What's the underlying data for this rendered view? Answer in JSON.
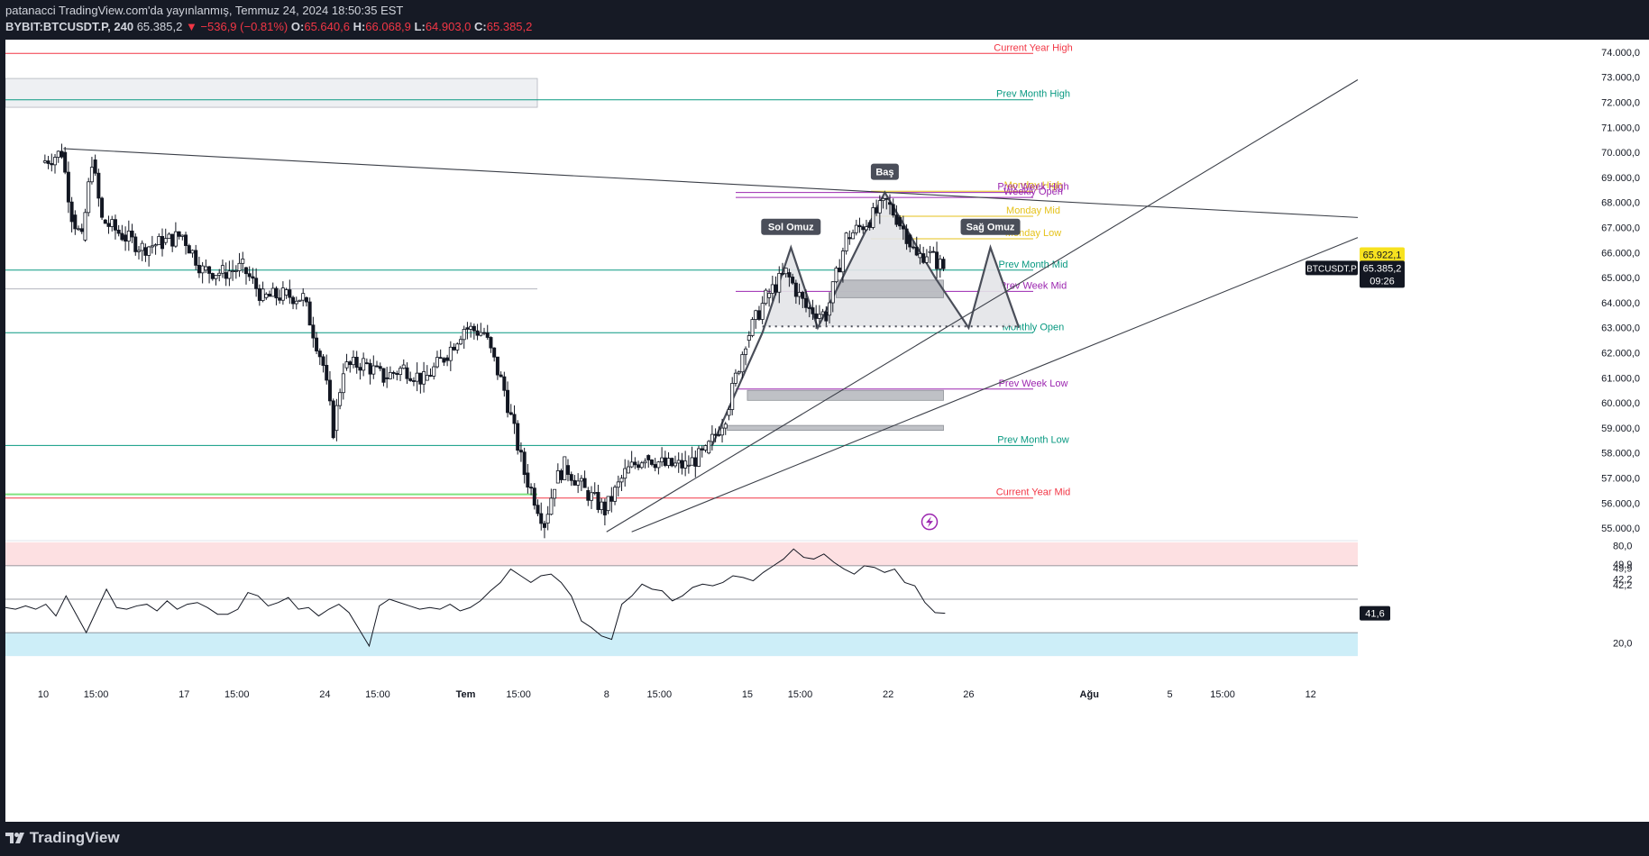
{
  "header": {
    "publisher_line": "patanacci TradingView.com'da yayınlanmış, Temmuz 24, 2024 18:50:35 EST",
    "symbol_interval": "BYBIT:BTCUSDT.P, 240",
    "last": "65.385,2",
    "change": "▼ −536,9 (−0.81%)",
    "o_label": "O:",
    "o_value": "65.640,6",
    "h_label": "H:",
    "h_value": "66.068,9",
    "l_label": "L:",
    "l_value": "64.903,0",
    "c_label": "C:",
    "c_value": "65.385,2"
  },
  "footer": {
    "logo_text": "TradingView"
  },
  "colors": {
    "background": "#ffffff",
    "frame": "#161a25",
    "candle": "#131722",
    "drawing": "#4a4e59",
    "green_level": "#089981",
    "red_level": "#f23645",
    "purple_level": "#9c27b0",
    "yellow_level": "#e5c21a",
    "rsi_line": "#131722",
    "rsi_overbought_zone": "#fde0e2",
    "rsi_oversold_zone": "#cdeef8"
  },
  "chart_data": {
    "type": "candlestick",
    "symbol": "BTCUSDT.P",
    "interval": "240",
    "y_axis": {
      "range": [
        54500,
        74500
      ],
      "ticks": [
        "74.000,0",
        "73.000,0",
        "72.000,0",
        "71.000,0",
        "70.000,0",
        "69.000,0",
        "68.000,0",
        "67.000,0",
        "66.000,0",
        "65.000,0",
        "64.000,0",
        "63.000,0",
        "62.000,0",
        "61.000,0",
        "60.000,0",
        "59.000,0",
        "58.000,0",
        "57.000,0",
        "56.000,0",
        "55.000,0"
      ],
      "tick_values": [
        74000,
        73000,
        72000,
        71000,
        70000,
        69000,
        68000,
        67000,
        66000,
        65000,
        64000,
        63000,
        62000,
        61000,
        60000,
        59000,
        58000,
        57000,
        56000,
        55000
      ]
    },
    "x_axis": {
      "range": [
        "2024-06-10",
        "2024-08-13"
      ],
      "ticks": [
        {
          "label": "10",
          "date": "2024-06-10"
        },
        {
          "label": "15:00",
          "date": "2024-06-12 15:00"
        },
        {
          "label": "17",
          "date": "2024-06-17"
        },
        {
          "label": "15:00",
          "date": "2024-06-19 15:00"
        },
        {
          "label": "24",
          "date": "2024-06-24"
        },
        {
          "label": "15:00",
          "date": "2024-06-26 15:00"
        },
        {
          "label": "Tem",
          "date": "2024-07-01"
        },
        {
          "label": "15:00",
          "date": "2024-07-03 15:00"
        },
        {
          "label": "8",
          "date": "2024-07-08"
        },
        {
          "label": "15:00",
          "date": "2024-07-10 15:00"
        },
        {
          "label": "15",
          "date": "2024-07-15"
        },
        {
          "label": "15:00",
          "date": "2024-07-17 15:00"
        },
        {
          "label": "22",
          "date": "2024-07-22"
        },
        {
          "label": "26",
          "date": "2024-07-26"
        },
        {
          "label": "Ağu",
          "date": "2024-08-01"
        },
        {
          "label": "5",
          "date": "2024-08-05"
        },
        {
          "label": "15:00",
          "date": "2024-08-07 15:00"
        },
        {
          "label": "12",
          "date": "2024-08-12"
        }
      ]
    },
    "price_path": [
      [
        "2024-06-10",
        69600
      ],
      [
        "2024-06-11",
        70000
      ],
      [
        "2024-06-11 12:00",
        67500
      ],
      [
        "2024-06-12",
        66500
      ],
      [
        "2024-06-12 12:00",
        69700
      ],
      [
        "2024-06-13",
        67300
      ],
      [
        "2024-06-14",
        66700
      ],
      [
        "2024-06-15",
        66200
      ],
      [
        "2024-06-16",
        66400
      ],
      [
        "2024-06-17",
        66700
      ],
      [
        "2024-06-18",
        65300
      ],
      [
        "2024-06-19",
        65200
      ],
      [
        "2024-06-20",
        65400
      ],
      [
        "2024-06-21",
        64200
      ],
      [
        "2024-06-22",
        64300
      ],
      [
        "2024-06-23",
        64200
      ],
      [
        "2024-06-24",
        61500
      ],
      [
        "2024-06-24 12:00",
        58900
      ],
      [
        "2024-06-25",
        61400
      ],
      [
        "2024-06-26",
        61600
      ],
      [
        "2024-06-27",
        61000
      ],
      [
        "2024-06-28",
        61400
      ],
      [
        "2024-06-29",
        60900
      ],
      [
        "2024-06-30",
        61800
      ],
      [
        "2024-07-01",
        63000
      ],
      [
        "2024-07-02",
        62800
      ],
      [
        "2024-07-03",
        60500
      ],
      [
        "2024-07-04",
        57200
      ],
      [
        "2024-07-05",
        55200
      ],
      [
        "2024-07-05 12:00",
        56800
      ],
      [
        "2024-07-06",
        57500
      ],
      [
        "2024-07-07",
        56500
      ],
      [
        "2024-07-08",
        55700
      ],
      [
        "2024-07-09",
        57200
      ],
      [
        "2024-07-10",
        57900
      ],
      [
        "2024-07-11",
        57500
      ],
      [
        "2024-07-12",
        57500
      ],
      [
        "2024-07-13",
        58000
      ],
      [
        "2024-07-14",
        59500
      ],
      [
        "2024-07-15",
        62500
      ],
      [
        "2024-07-16",
        64200
      ],
      [
        "2024-07-17",
        65200
      ],
      [
        "2024-07-18",
        63800
      ],
      [
        "2024-07-19",
        63500
      ],
      [
        "2024-07-20",
        66600
      ],
      [
        "2024-07-21",
        67200
      ],
      [
        "2024-07-22",
        68000
      ],
      [
        "2024-07-22 12:00",
        67400
      ],
      [
        "2024-07-23",
        66700
      ],
      [
        "2024-07-23 12:00",
        65800
      ],
      [
        "2024-07-24",
        66000
      ],
      [
        "2024-07-24 20:00",
        65385.2
      ]
    ],
    "last_price": 65385.2,
    "last_price_label": "65.385,2",
    "last_price_countdown": "09:26",
    "symbol_tag": "BTCUSDT.P",
    "yellow_price_label": "65.922,1",
    "yellow_price": 65922.1,
    "levels": [
      {
        "label": "Current Year High",
        "price": 73950,
        "color": "red"
      },
      {
        "label": "Prev Month High",
        "price": 72100,
        "color": "green"
      },
      {
        "label": "Monday High",
        "price": 68450,
        "color": "yellow"
      },
      {
        "label": "Prev Week High",
        "price": 68400,
        "color": "purple"
      },
      {
        "label": "Weekly Open",
        "price": 68200,
        "color": "purple"
      },
      {
        "label": "Monday Mid",
        "price": 67450,
        "color": "yellow"
      },
      {
        "label": "Monday Low",
        "price": 66550,
        "color": "yellow"
      },
      {
        "label": "Prev Month Mid",
        "price": 65300,
        "color": "green"
      },
      {
        "label": "Prev Week Mid",
        "price": 64450,
        "color": "purple"
      },
      {
        "label": "Monthly Open",
        "price": 62800,
        "color": "green"
      },
      {
        "label": "Prev Week Low",
        "price": 60550,
        "color": "purple"
      },
      {
        "label": "Prev Month Low",
        "price": 58300,
        "color": "green"
      },
      {
        "label": "Current Year Mid",
        "price": 56200,
        "color": "red"
      }
    ],
    "pattern_labels": [
      "Sol Omuz",
      "Baş",
      "Sağ Omuz"
    ],
    "rsi": {
      "axis_labels": [
        "80,0",
        "49,9",
        "49,9",
        "42,2",
        "42,2",
        "20,0"
      ],
      "current_value_label": "41,6",
      "current_value": 41.6,
      "overbought": 70,
      "oversold": 30,
      "values": [
        45,
        44,
        46,
        44,
        47,
        40,
        52,
        41,
        30,
        43,
        56,
        45,
        44,
        46,
        47,
        43,
        49,
        44,
        47,
        48,
        45,
        41,
        41,
        44,
        54,
        52,
        46,
        48,
        51,
        44,
        45,
        40,
        44,
        47,
        42,
        32,
        22,
        46,
        50,
        48,
        46,
        44,
        45,
        44,
        47,
        43,
        45,
        49,
        55,
        60,
        68,
        64,
        60,
        64,
        65,
        60,
        52,
        37,
        33,
        28,
        26,
        47,
        52,
        59,
        56,
        55,
        49,
        52,
        57,
        59,
        58,
        60,
        64,
        63,
        61,
        66,
        70,
        74,
        80,
        75,
        74,
        77,
        72,
        68,
        65,
        70,
        69,
        66,
        68,
        60,
        58,
        48,
        42,
        41.6
      ]
    }
  }
}
